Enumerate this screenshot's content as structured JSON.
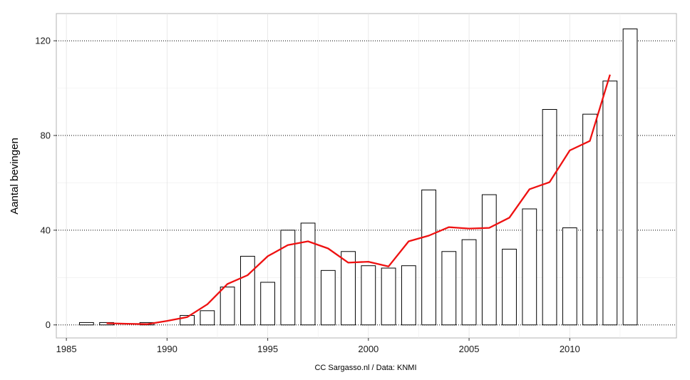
{
  "chart_data": {
    "type": "bar",
    "title": "",
    "xlabel": "",
    "ylabel": "Aantal bevingen",
    "caption": "CC Sargasso.nl / Data: KNMI",
    "xlim": [
      1984.5,
      2015.3
    ],
    "ylim": [
      -5.5,
      131.5
    ],
    "x_ticks": [
      "1985",
      "1990",
      "1995",
      "2000",
      "2005",
      "2010"
    ],
    "y_ticks": [
      "0",
      "40",
      "80",
      "120"
    ],
    "grid": "dotted horizontal major lines",
    "categories": [
      1986,
      1987,
      1988,
      1989,
      1990,
      1991,
      1992,
      1993,
      1994,
      1995,
      1996,
      1997,
      1998,
      1999,
      2000,
      2001,
      2002,
      2003,
      2004,
      2005,
      2006,
      2007,
      2008,
      2009,
      2010,
      2011,
      2012,
      2013
    ],
    "series": [
      {
        "type": "bar",
        "values": [
          1,
          1,
          0,
          1,
          0,
          4,
          6,
          16,
          29,
          18,
          40,
          43,
          23,
          31,
          25,
          24,
          25,
          57,
          31,
          36,
          55,
          32,
          49,
          91,
          41,
          89,
          103,
          125
        ]
      },
      {
        "type": "line",
        "x": [
          1987,
          1988,
          1989,
          1990,
          1991,
          1992,
          1993,
          1994,
          1995,
          1996,
          1997,
          1998,
          1999,
          2000,
          2001,
          2002,
          2003,
          2004,
          2005,
          2006,
          2007,
          2008,
          2009,
          2010,
          2011,
          2012
        ],
        "values": [
          0.7,
          0.5,
          0.3,
          1.7,
          3.3,
          8.7,
          17.3,
          21,
          29,
          33.7,
          35.3,
          32.3,
          26.3,
          26.7,
          24.7,
          35.3,
          37.7,
          41.3,
          40.7,
          41,
          45.3,
          57.3,
          60.3,
          73.7,
          77.7,
          105.7
        ]
      }
    ],
    "colors": {
      "bar_fill": "#ffffff",
      "bar_stroke": "#000000",
      "line": "#ee1111",
      "panel_border": "#b3b3b3",
      "grid": "#000000"
    }
  }
}
